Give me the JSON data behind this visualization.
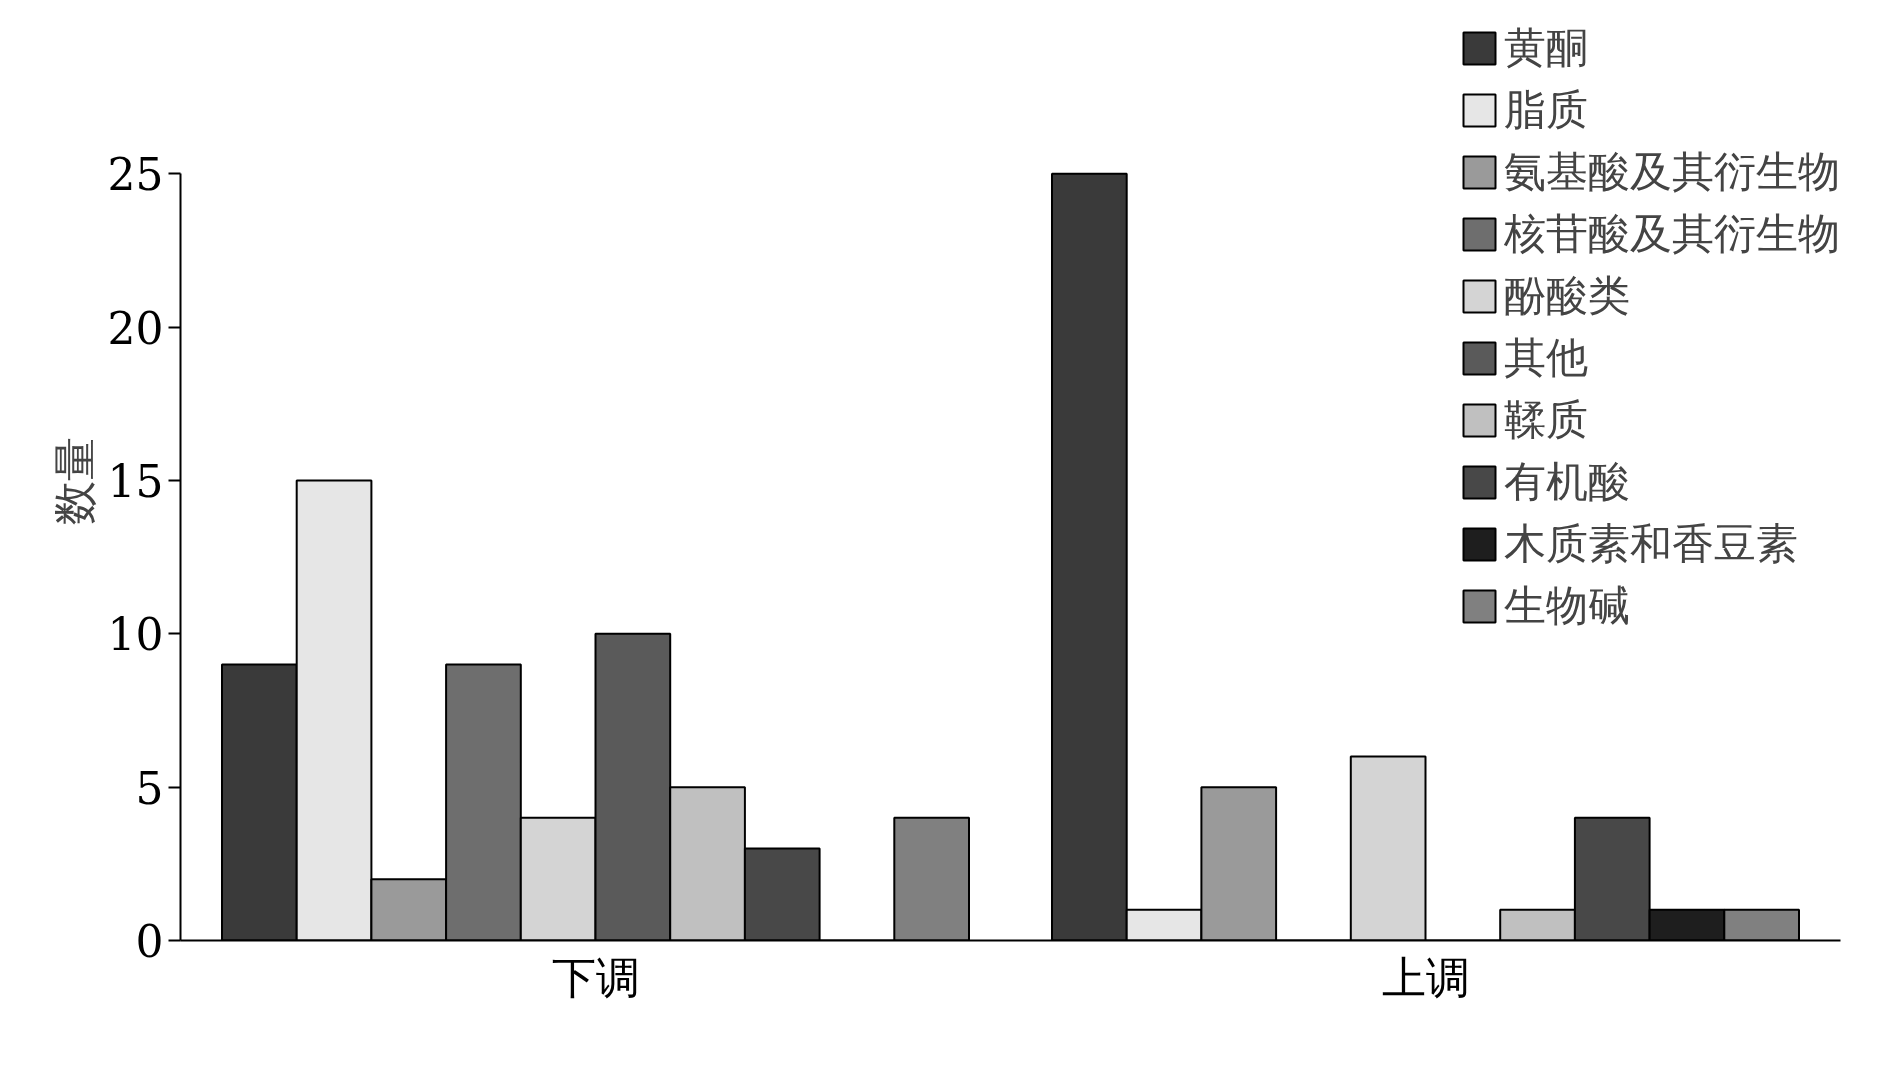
{
  "chart_data": {
    "type": "bar",
    "ylabel": "数量",
    "categories": [
      "下调",
      "上调"
    ],
    "series": [
      {
        "name": "黄酮",
        "color": "#3a3a3a",
        "values": [
          9,
          25
        ]
      },
      {
        "name": "脂质",
        "color": "#e6e6e6",
        "values": [
          15,
          1
        ]
      },
      {
        "name": "氨基酸及其衍生物",
        "color": "#9a9a9a",
        "values": [
          2,
          5
        ]
      },
      {
        "name": "核苷酸及其衍生物",
        "color": "#6e6e6e",
        "values": [
          9,
          0
        ]
      },
      {
        "name": "酚酸类",
        "color": "#d4d4d4",
        "values": [
          4,
          6
        ]
      },
      {
        "name": "其他",
        "color": "#5a5a5a",
        "values": [
          10,
          0
        ]
      },
      {
        "name": "鞣质",
        "color": "#c0c0c0",
        "values": [
          5,
          1
        ]
      },
      {
        "name": "有机酸",
        "color": "#484848",
        "values": [
          3,
          4
        ]
      },
      {
        "name": "木质素和香豆素",
        "color": "#1e1e1e",
        "values": [
          0,
          1
        ]
      },
      {
        "name": "生物碱",
        "color": "#808080",
        "values": [
          4,
          1
        ]
      }
    ],
    "ylim": [
      0,
      25
    ],
    "yticks": [
      0,
      5,
      10,
      15,
      20,
      25
    ],
    "grid": false,
    "legend": "top right"
  }
}
